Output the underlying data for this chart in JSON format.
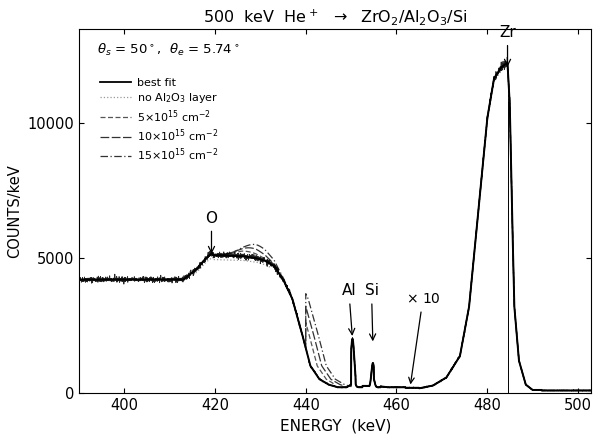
{
  "title": "500  keV  He$^+$  $\\rightarrow$  ZrO$_2$/Al$_2$O$_3$/Si",
  "xlabel": "ENERGY  (keV)",
  "ylabel": "COUNTS/keV",
  "xlim": [
    390,
    503
  ],
  "ylim": [
    0,
    13500
  ],
  "yticks": [
    0,
    5000,
    10000
  ],
  "xticks": [
    400,
    420,
    440,
    460,
    480,
    500
  ],
  "legend_params": {
    "best_fit": "best fit",
    "no_al2o3": "no Al$_2$O$_3$ layer",
    "5e15": "5$\\times$10$^{15}$ cm$^{-2}$",
    "10e15": "10$\\times$10$^{15}$ cm$^{-2}$",
    "15e15": "15$\\times$10$^{15}$ cm$^{-2}$"
  },
  "inset_text": "$\\theta_s$ = 50$^\\circ$,  $\\theta_e$ = 5.74$^\\circ$",
  "background_color": "#ffffff"
}
